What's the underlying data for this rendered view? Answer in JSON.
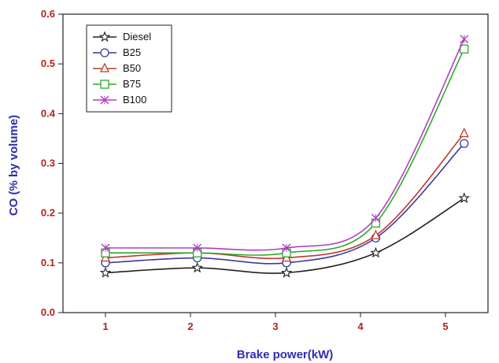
{
  "chart_data": {
    "type": "line",
    "title": "",
    "xlabel": "Brake power(kW)",
    "ylabel": "CO (% by volume)",
    "xlim": [
      0.5,
      5.5
    ],
    "ylim": [
      0.0,
      0.6
    ],
    "xticks": [
      "1",
      "2",
      "3",
      "4",
      "5"
    ],
    "yticks": [
      "0.0",
      "0.1",
      "0.2",
      "0.3",
      "0.4",
      "0.5",
      "0.6"
    ],
    "grid": false,
    "legend_position": "top-left",
    "x": [
      1.0,
      2.08,
      3.13,
      4.18,
      5.22
    ],
    "series": [
      {
        "name": "Diesel",
        "marker": "star",
        "color": "#222222",
        "values": [
          0.08,
          0.09,
          0.08,
          0.12,
          0.23
        ]
      },
      {
        "name": "B25",
        "marker": "circle",
        "color": "#3a3aa0",
        "values": [
          0.1,
          0.11,
          0.1,
          0.15,
          0.34
        ]
      },
      {
        "name": "B50",
        "marker": "triangle",
        "color": "#c0392b",
        "values": [
          0.11,
          0.12,
          0.11,
          0.155,
          0.36
        ]
      },
      {
        "name": "B75",
        "marker": "square",
        "color": "#2eaa2e",
        "values": [
          0.12,
          0.12,
          0.12,
          0.18,
          0.53
        ]
      },
      {
        "name": "B100",
        "marker": "x",
        "color": "#b040c0",
        "values": [
          0.13,
          0.13,
          0.13,
          0.19,
          0.55
        ]
      }
    ]
  }
}
